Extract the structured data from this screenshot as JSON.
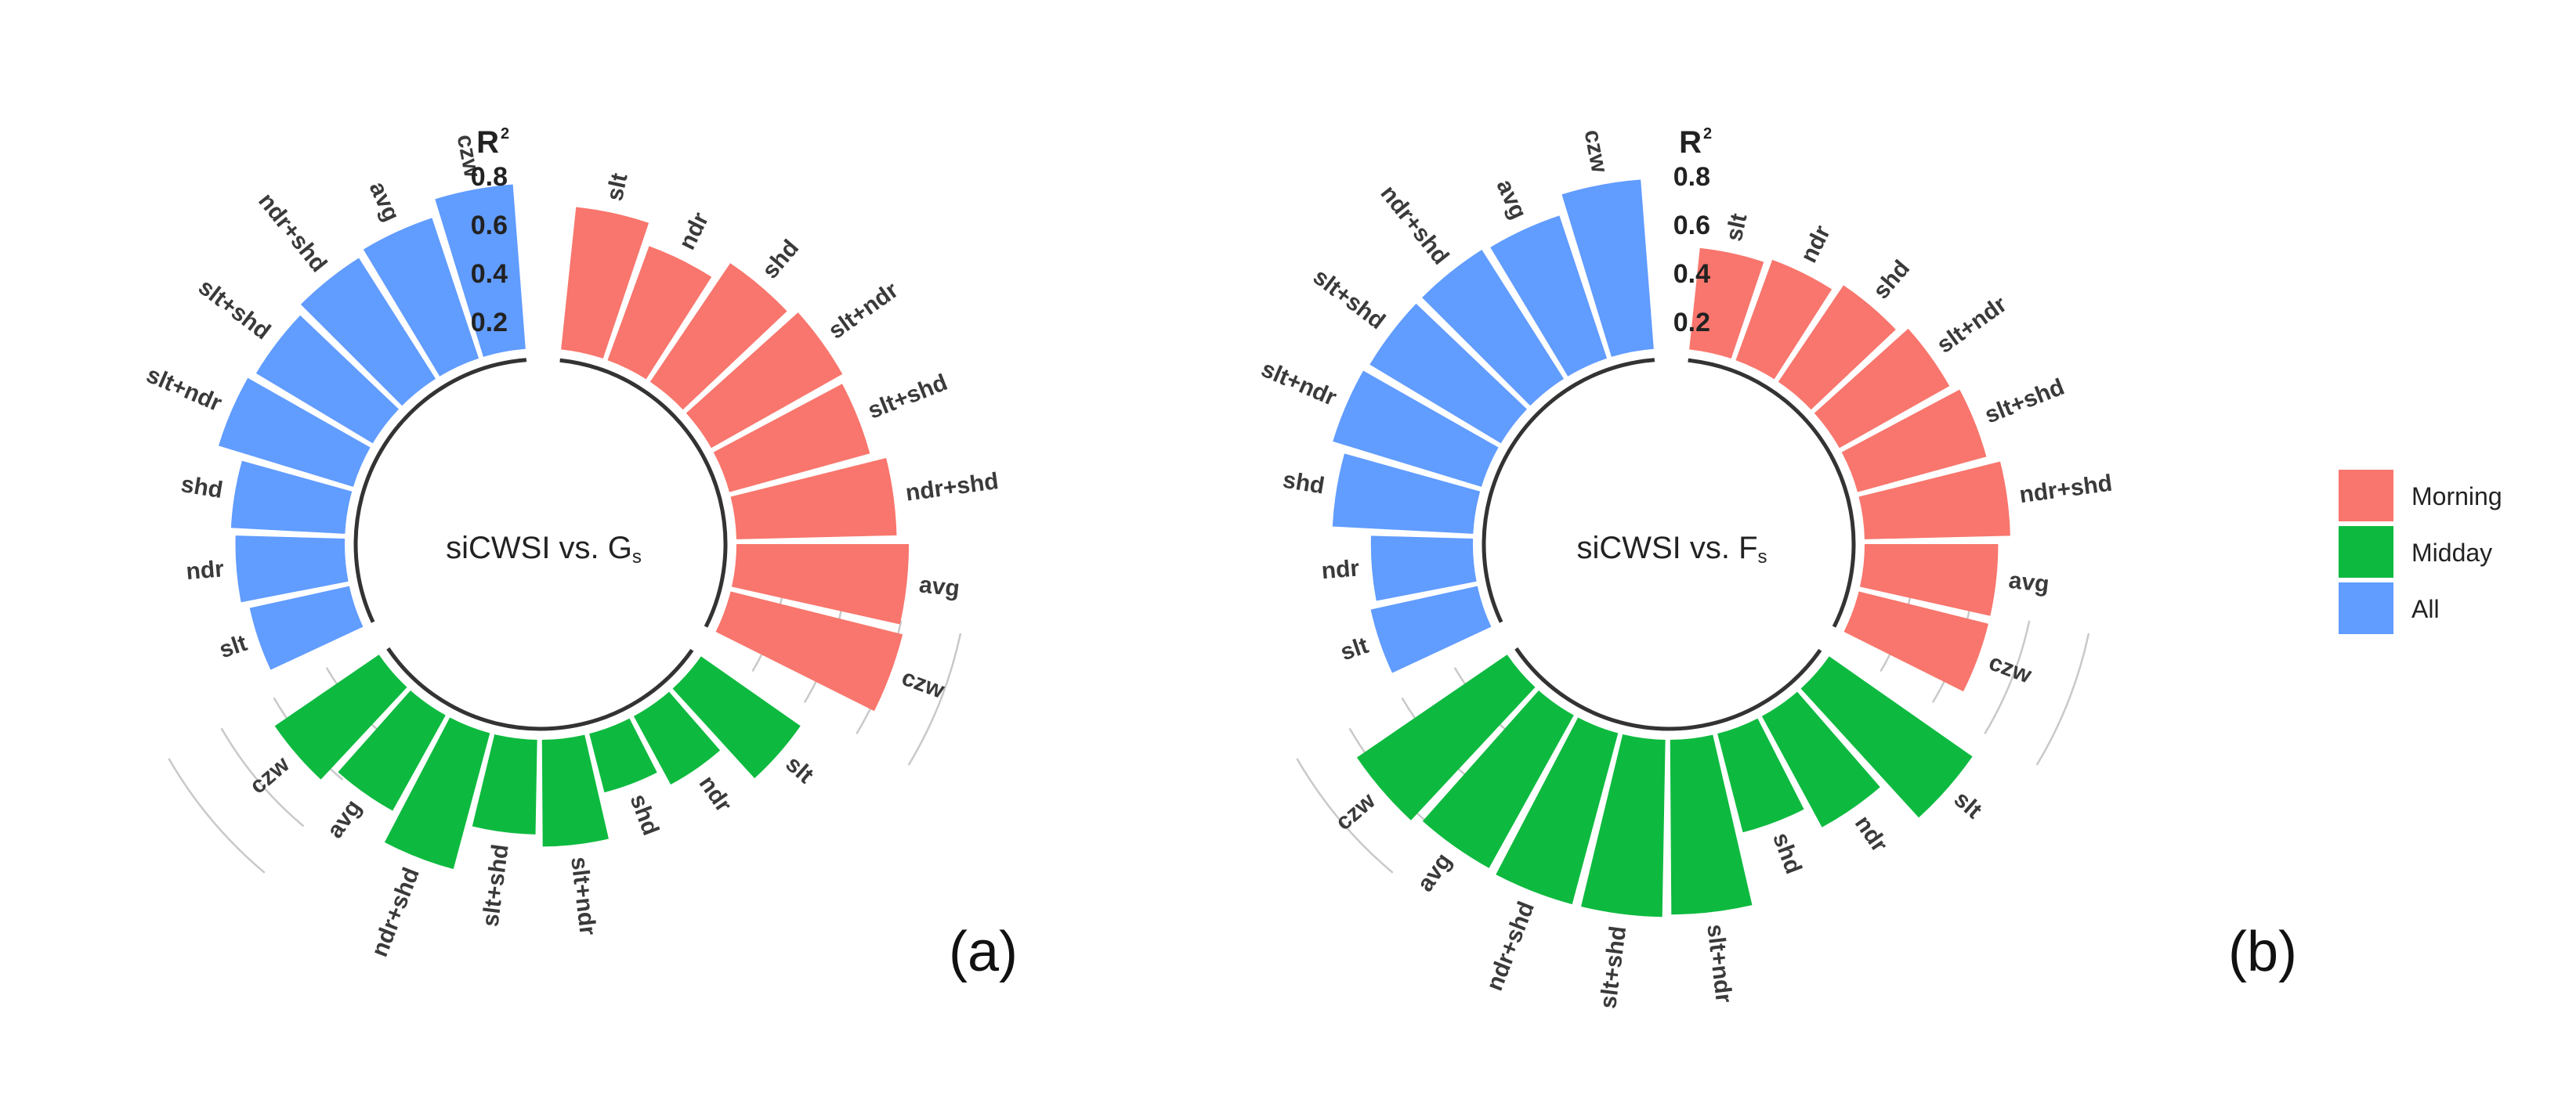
{
  "colors": {
    "Morning": "#f8766d",
    "Midday": "#0dba3f",
    "All": "#619cff"
  },
  "legend": {
    "items": [
      "Morning",
      "Midday",
      "All"
    ]
  },
  "chart_data": [
    {
      "type": "bar",
      "coord": "polar",
      "panel_label": "(a)",
      "center_text": {
        "main": "siCWSI vs. G",
        "sub": "s"
      },
      "r_axis": {
        "label": "R",
        "label_sup": "2",
        "ticks": [
          "0.8",
          "0.6",
          "0.4",
          "0.2"
        ],
        "tick_values": [
          0.8,
          0.6,
          0.4,
          0.2
        ],
        "range": [
          0,
          1
        ]
      },
      "series": [
        {
          "name": "Morning",
          "categories": [
            "slt",
            "ndr",
            "shd",
            "slt+ndr",
            "slt+shd",
            "ndr+shd",
            "avg",
            "czw"
          ],
          "values": [
            0.59,
            0.5,
            0.59,
            0.62,
            0.6,
            0.66,
            0.71,
            0.73
          ]
        },
        {
          "name": "Midday",
          "categories": [
            "slt",
            "ndr",
            "shd",
            "slt+ndr",
            "slt+shd",
            "ndr+shd",
            "avg",
            "czw"
          ],
          "values": [
            0.5,
            0.32,
            0.25,
            0.44,
            0.39,
            0.58,
            0.45,
            0.52
          ]
        },
        {
          "name": "All",
          "categories": [
            "slt",
            "ndr",
            "shd",
            "slt+ndr",
            "slt+shd",
            "ndr+shd",
            "avg",
            "czw"
          ],
          "values": [
            0.42,
            0.45,
            0.47,
            0.58,
            0.56,
            0.59,
            0.61,
            0.68
          ]
        }
      ]
    },
    {
      "type": "bar",
      "coord": "polar",
      "panel_label": "(b)",
      "center_text": {
        "main": "siCWSI vs. F",
        "sub": "s"
      },
      "r_axis": {
        "label": "R",
        "label_sup": "2",
        "ticks": [
          "0.8",
          "0.6",
          "0.4",
          "0.2"
        ],
        "tick_values": [
          0.8,
          0.6,
          0.4,
          0.2
        ],
        "range": [
          0,
          1
        ]
      },
      "series": [
        {
          "name": "Morning",
          "categories": [
            "slt",
            "ndr",
            "shd",
            "slt+ndr",
            "slt+shd",
            "ndr+shd",
            "avg",
            "czw"
          ],
          "values": [
            0.42,
            0.44,
            0.48,
            0.52,
            0.55,
            0.6,
            0.55,
            0.55
          ]
        },
        {
          "name": "Midday",
          "categories": [
            "slt",
            "ndr",
            "shd",
            "slt+ndr",
            "slt+shd",
            "ndr+shd",
            "avg",
            "czw"
          ],
          "values": [
            0.72,
            0.52,
            0.42,
            0.72,
            0.73,
            0.73,
            0.72,
            0.75
          ]
        },
        {
          "name": "All",
          "categories": [
            "slt",
            "ndr",
            "shd",
            "slt+ndr",
            "slt+shd",
            "ndr+shd",
            "avg",
            "czw"
          ],
          "values": [
            0.45,
            0.42,
            0.58,
            0.64,
            0.63,
            0.63,
            0.62,
            0.7
          ]
        }
      ]
    }
  ]
}
